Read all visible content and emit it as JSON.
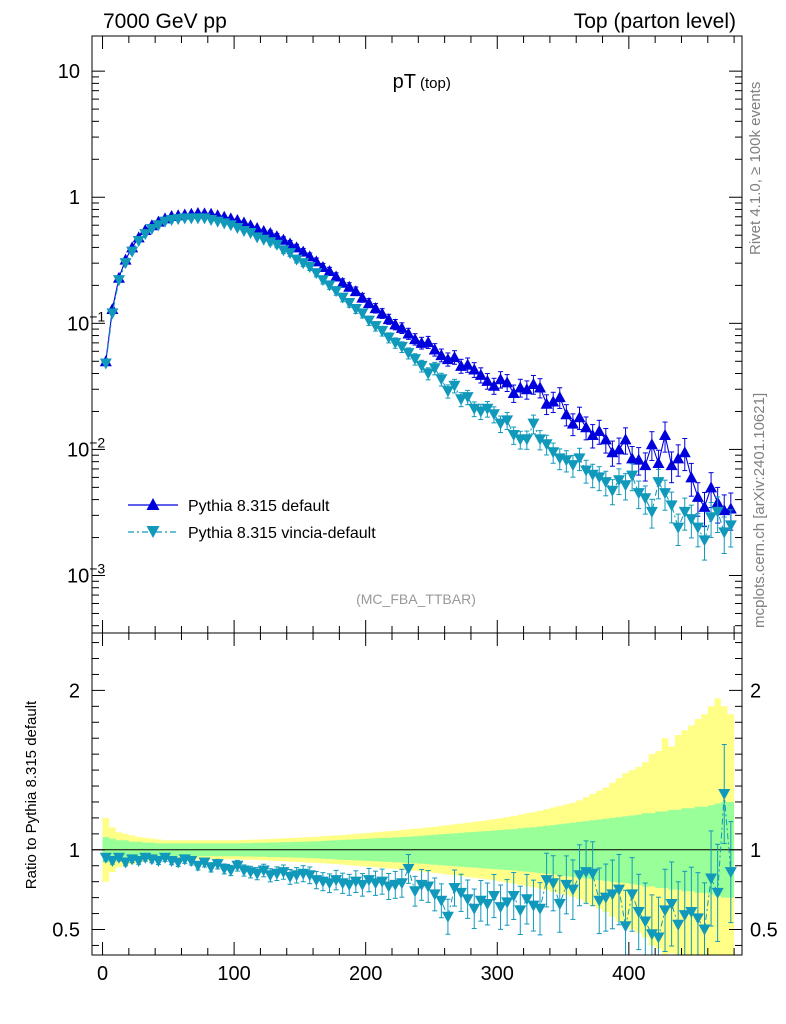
{
  "header": {
    "left_label": "7000 GeV pp",
    "right_label": "Top (parton level)"
  },
  "side_labels": {
    "rivet": "Rivet 4.1.0, ≥ 100k events",
    "mcplots": "mcplots.cern.ch [arXiv:2401.10621]"
  },
  "colors": {
    "default": "#0000dd",
    "vincia": "#1199bb",
    "band_inner": "#99ff99",
    "band_outer": "#ffff88",
    "watermark": "#999999"
  },
  "chart_data": [
    {
      "type": "line",
      "title": "pT",
      "title_sub": "(top)",
      "watermark": "(MC_FBA_TTBAR)",
      "xlabel": "",
      "ylabel": "",
      "yscale": "log",
      "xlim": [
        -8,
        486
      ],
      "ylim": [
        0.00035,
        19
      ],
      "y_tick_labels": [
        {
          "value": 10,
          "base": "10",
          "exp": ""
        },
        {
          "value": 1,
          "base": "1",
          "exp": ""
        },
        {
          "value": 0.1,
          "base": "10",
          "exp": "−1"
        },
        {
          "value": 0.01,
          "base": "10",
          "exp": "−2"
        },
        {
          "value": 0.001,
          "base": "10",
          "exp": "−3"
        }
      ],
      "legend": [
        "Pythia 8.315 default",
        "Pythia 8.315 vincia-default"
      ],
      "legend_position": "lower-left",
      "series": [
        {
          "name": "Pythia 8.315 default",
          "x": [
            2.5,
            7.5,
            12.5,
            17.5,
            22.5,
            27.5,
            32.5,
            37.5,
            42.5,
            47.5,
            52.5,
            57.5,
            62.5,
            67.5,
            72.5,
            77.5,
            82.5,
            87.5,
            92.5,
            97.5,
            102.5,
            107.5,
            112.5,
            117.5,
            122.5,
            127.5,
            132.5,
            137.5,
            142.5,
            147.5,
            152.5,
            157.5,
            162.5,
            167.5,
            172.5,
            177.5,
            182.5,
            187.5,
            192.5,
            197.5,
            202.5,
            207.5,
            212.5,
            217.5,
            222.5,
            227.5,
            232.5,
            237.5,
            242.5,
            247.5,
            252.5,
            257.5,
            262.5,
            267.5,
            272.5,
            277.5,
            282.5,
            287.5,
            292.5,
            297.5,
            302.5,
            307.5,
            312.5,
            317.5,
            322.5,
            327.5,
            332.5,
            337.5,
            342.5,
            347.5,
            352.5,
            357.5,
            362.5,
            367.5,
            372.5,
            377.5,
            382.5,
            387.5,
            392.5,
            397.5,
            402.5,
            407.5,
            412.5,
            417.5,
            422.5,
            427.5,
            432.5,
            437.5,
            442.5,
            447.5,
            452.5,
            457.5,
            462.5,
            467.5,
            472.5,
            477.5
          ],
          "values": [
            0.05,
            0.13,
            0.23,
            0.32,
            0.4,
            0.48,
            0.55,
            0.6,
            0.64,
            0.68,
            0.71,
            0.72,
            0.73,
            0.74,
            0.75,
            0.745,
            0.74,
            0.72,
            0.7,
            0.68,
            0.66,
            0.63,
            0.6,
            0.57,
            0.54,
            0.52,
            0.49,
            0.46,
            0.43,
            0.4,
            0.37,
            0.34,
            0.31,
            0.28,
            0.26,
            0.235,
            0.21,
            0.195,
            0.18,
            0.16,
            0.145,
            0.132,
            0.12,
            0.108,
            0.098,
            0.092,
            0.083,
            0.075,
            0.07,
            0.071,
            0.062,
            0.056,
            0.052,
            0.054,
            0.046,
            0.047,
            0.043,
            0.039,
            0.035,
            0.032,
            0.036,
            0.034,
            0.028,
            0.031,
            0.03,
            0.033,
            0.031,
            0.023,
            0.024,
            0.026,
            0.019,
            0.016,
            0.018,
            0.015,
            0.013,
            0.014,
            0.012,
            0.0095,
            0.01,
            0.012,
            0.0085,
            0.0083,
            0.0075,
            0.011,
            0.0078,
            0.013,
            0.0075,
            0.0085,
            0.0095,
            0.006,
            0.0042,
            0.0035,
            0.005,
            0.0038,
            0.0033,
            0.0034
          ],
          "marker": "triangle-up"
        },
        {
          "name": "Pythia 8.315 vincia-default",
          "x": [
            2.5,
            7.5,
            12.5,
            17.5,
            22.5,
            27.5,
            32.5,
            37.5,
            42.5,
            47.5,
            52.5,
            57.5,
            62.5,
            67.5,
            72.5,
            77.5,
            82.5,
            87.5,
            92.5,
            97.5,
            102.5,
            107.5,
            112.5,
            117.5,
            122.5,
            127.5,
            132.5,
            137.5,
            142.5,
            147.5,
            152.5,
            157.5,
            162.5,
            167.5,
            172.5,
            177.5,
            182.5,
            187.5,
            192.5,
            197.5,
            202.5,
            207.5,
            212.5,
            217.5,
            222.5,
            227.5,
            232.5,
            237.5,
            242.5,
            247.5,
            252.5,
            257.5,
            262.5,
            267.5,
            272.5,
            277.5,
            282.5,
            287.5,
            292.5,
            297.5,
            302.5,
            307.5,
            312.5,
            317.5,
            322.5,
            327.5,
            332.5,
            337.5,
            342.5,
            347.5,
            352.5,
            357.5,
            362.5,
            367.5,
            372.5,
            377.5,
            382.5,
            387.5,
            392.5,
            397.5,
            402.5,
            407.5,
            412.5,
            417.5,
            422.5,
            427.5,
            432.5,
            437.5,
            442.5,
            447.5,
            452.5,
            457.5,
            462.5,
            467.5,
            472.5,
            477.5
          ],
          "values": [
            0.048,
            0.12,
            0.22,
            0.3,
            0.37,
            0.45,
            0.51,
            0.56,
            0.6,
            0.64,
            0.66,
            0.67,
            0.68,
            0.68,
            0.68,
            0.68,
            0.66,
            0.64,
            0.62,
            0.6,
            0.57,
            0.54,
            0.52,
            0.48,
            0.46,
            0.44,
            0.42,
            0.38,
            0.36,
            0.32,
            0.3,
            0.28,
            0.25,
            0.22,
            0.2,
            0.18,
            0.16,
            0.145,
            0.13,
            0.12,
            0.105,
            0.095,
            0.087,
            0.077,
            0.07,
            0.065,
            0.058,
            0.052,
            0.046,
            0.04,
            0.044,
            0.036,
            0.029,
            0.032,
            0.025,
            0.026,
            0.021,
            0.02,
            0.021,
            0.019,
            0.016,
            0.017,
            0.013,
            0.012,
            0.012,
            0.016,
            0.012,
            0.011,
            0.0095,
            0.0085,
            0.0082,
            0.0075,
            0.0085,
            0.0068,
            0.0063,
            0.006,
            0.0055,
            0.0047,
            0.0057,
            0.0052,
            0.0062,
            0.0045,
            0.0041,
            0.0032,
            0.0055,
            0.0045,
            0.0036,
            0.0024,
            0.0032,
            0.0028,
            0.0024,
            0.0019,
            0.0029,
            0.0032,
            0.0022,
            0.0025
          ],
          "marker": "triangle-down"
        }
      ]
    },
    {
      "type": "line",
      "title": "",
      "xlabel": "",
      "ylabel": "Ratio to Pythia 8.315 default",
      "xlim": [
        -8,
        486
      ],
      "ylim": [
        0.34,
        2.36
      ],
      "x_ticks": [
        0,
        100,
        200,
        300,
        400
      ],
      "y_ticks": [
        0.5,
        1,
        2
      ],
      "y_tick_labels": [
        "0.5",
        "1",
        "2"
      ],
      "reference_line": 1,
      "bands": {
        "x_edges": [
          0,
          5,
          10,
          15,
          20,
          25,
          30,
          35,
          40,
          45,
          50,
          55,
          60,
          65,
          70,
          75,
          80,
          85,
          90,
          95,
          100,
          105,
          110,
          115,
          120,
          125,
          130,
          135,
          140,
          145,
          150,
          155,
          160,
          165,
          170,
          175,
          180,
          185,
          190,
          195,
          200,
          205,
          210,
          215,
          220,
          225,
          230,
          235,
          240,
          245,
          250,
          255,
          260,
          265,
          270,
          275,
          280,
          285,
          290,
          295,
          300,
          305,
          310,
          315,
          320,
          325,
          330,
          335,
          340,
          345,
          350,
          355,
          360,
          365,
          370,
          375,
          380,
          385,
          390,
          395,
          400,
          405,
          410,
          415,
          420,
          425,
          430,
          435,
          440,
          445,
          450,
          455,
          460,
          465,
          470,
          475,
          480
        ],
        "inner_half_width": [
          0.08,
          0.07,
          0.06,
          0.06,
          0.05,
          0.05,
          0.045,
          0.045,
          0.04,
          0.04,
          0.04,
          0.04,
          0.04,
          0.04,
          0.04,
          0.04,
          0.04,
          0.04,
          0.04,
          0.04,
          0.04,
          0.042,
          0.042,
          0.044,
          0.044,
          0.046,
          0.046,
          0.048,
          0.048,
          0.05,
          0.05,
          0.052,
          0.054,
          0.056,
          0.058,
          0.06,
          0.062,
          0.064,
          0.066,
          0.068,
          0.07,
          0.072,
          0.074,
          0.076,
          0.078,
          0.08,
          0.082,
          0.085,
          0.088,
          0.091,
          0.094,
          0.097,
          0.1,
          0.103,
          0.106,
          0.109,
          0.112,
          0.115,
          0.118,
          0.121,
          0.124,
          0.127,
          0.13,
          0.134,
          0.138,
          0.142,
          0.146,
          0.15,
          0.155,
          0.16,
          0.165,
          0.17,
          0.175,
          0.18,
          0.185,
          0.19,
          0.195,
          0.2,
          0.205,
          0.21,
          0.215,
          0.22,
          0.23,
          0.23,
          0.24,
          0.24,
          0.25,
          0.25,
          0.26,
          0.26,
          0.27,
          0.27,
          0.28,
          0.29,
          0.3,
          0.3
        ],
        "outer_half_width": [
          0.2,
          0.14,
          0.11,
          0.1,
          0.09,
          0.08,
          0.075,
          0.07,
          0.065,
          0.06,
          0.06,
          0.06,
          0.06,
          0.06,
          0.06,
          0.06,
          0.06,
          0.06,
          0.06,
          0.06,
          0.06,
          0.062,
          0.063,
          0.064,
          0.066,
          0.068,
          0.07,
          0.072,
          0.074,
          0.076,
          0.078,
          0.08,
          0.082,
          0.085,
          0.088,
          0.09,
          0.093,
          0.096,
          0.1,
          0.103,
          0.106,
          0.11,
          0.113,
          0.117,
          0.12,
          0.124,
          0.128,
          0.132,
          0.136,
          0.14,
          0.145,
          0.15,
          0.155,
          0.16,
          0.165,
          0.17,
          0.175,
          0.18,
          0.186,
          0.192,
          0.198,
          0.205,
          0.212,
          0.22,
          0.228,
          0.236,
          0.245,
          0.255,
          0.265,
          0.275,
          0.285,
          0.295,
          0.31,
          0.33,
          0.35,
          0.37,
          0.39,
          0.42,
          0.45,
          0.48,
          0.5,
          0.52,
          0.55,
          0.6,
          0.62,
          0.7,
          0.65,
          0.72,
          0.75,
          0.78,
          0.82,
          0.85,
          0.9,
          0.95,
          0.9,
          0.85
        ]
      },
      "series": [
        {
          "name": "Pythia 8.315 vincia-default",
          "x": [
            2.5,
            7.5,
            12.5,
            17.5,
            22.5,
            27.5,
            32.5,
            37.5,
            42.5,
            47.5,
            52.5,
            57.5,
            62.5,
            67.5,
            72.5,
            77.5,
            82.5,
            87.5,
            92.5,
            97.5,
            102.5,
            107.5,
            112.5,
            117.5,
            122.5,
            127.5,
            132.5,
            137.5,
            142.5,
            147.5,
            152.5,
            157.5,
            162.5,
            167.5,
            172.5,
            177.5,
            182.5,
            187.5,
            192.5,
            197.5,
            202.5,
            207.5,
            212.5,
            217.5,
            222.5,
            227.5,
            232.5,
            237.5,
            242.5,
            247.5,
            252.5,
            257.5,
            262.5,
            267.5,
            272.5,
            277.5,
            282.5,
            287.5,
            292.5,
            297.5,
            302.5,
            307.5,
            312.5,
            317.5,
            322.5,
            327.5,
            332.5,
            337.5,
            342.5,
            347.5,
            352.5,
            357.5,
            362.5,
            367.5,
            372.5,
            377.5,
            382.5,
            387.5,
            392.5,
            397.5,
            402.5,
            407.5,
            412.5,
            417.5,
            422.5,
            427.5,
            432.5,
            437.5,
            442.5,
            447.5,
            452.5,
            457.5,
            462.5,
            467.5,
            472.5,
            477.5
          ],
          "values": [
            0.95,
            0.93,
            0.95,
            0.92,
            0.94,
            0.93,
            0.95,
            0.94,
            0.93,
            0.95,
            0.93,
            0.92,
            0.94,
            0.93,
            0.9,
            0.92,
            0.89,
            0.91,
            0.88,
            0.87,
            0.9,
            0.87,
            0.86,
            0.85,
            0.87,
            0.84,
            0.85,
            0.86,
            0.83,
            0.84,
            0.85,
            0.84,
            0.81,
            0.8,
            0.79,
            0.81,
            0.79,
            0.78,
            0.8,
            0.78,
            0.81,
            0.79,
            0.8,
            0.77,
            0.78,
            0.79,
            0.88,
            0.74,
            0.78,
            0.77,
            0.72,
            0.68,
            0.58,
            0.76,
            0.73,
            0.69,
            0.63,
            0.68,
            0.66,
            0.71,
            0.64,
            0.67,
            0.71,
            0.62,
            0.69,
            0.65,
            0.63,
            0.81,
            0.79,
            0.66,
            0.78,
            0.75,
            0.84,
            0.86,
            0.85,
            0.68,
            0.7,
            0.72,
            0.75,
            0.52,
            0.72,
            0.61,
            0.55,
            0.47,
            0.45,
            0.62,
            0.66,
            0.53,
            0.59,
            0.61,
            0.57,
            0.5,
            0.82,
            0.73,
            1.35,
            0.86
          ],
          "marker": "triangle-down"
        }
      ]
    }
  ]
}
